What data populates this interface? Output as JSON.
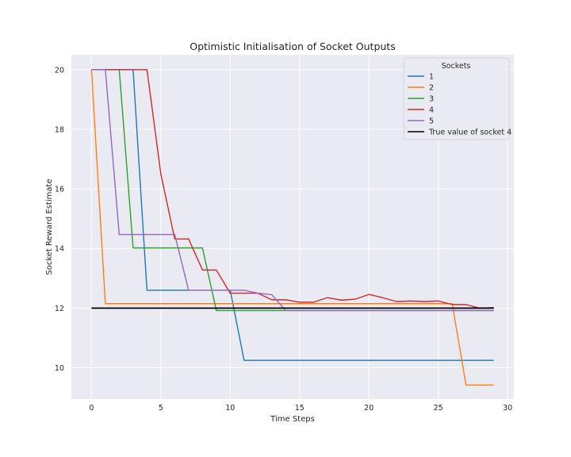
{
  "chart_data": {
    "type": "line",
    "title": "Optimistic Initialisation of Socket Outputs",
    "xlabel": "Time Steps",
    "ylabel": "Socket Reward Estimate",
    "xlim": [
      -1.45,
      30.45
    ],
    "ylim": [
      8.95,
      20.5
    ],
    "xticks": [
      0,
      5,
      10,
      15,
      20,
      25,
      30
    ],
    "yticks": [
      10,
      12,
      14,
      16,
      18,
      20
    ],
    "grid": true,
    "legend_title": "Sockets",
    "legend_position": "top-right",
    "x": [
      0,
      1,
      2,
      3,
      4,
      5,
      6,
      7,
      8,
      9,
      10,
      11,
      12,
      13,
      14,
      15,
      16,
      17,
      18,
      19,
      20,
      21,
      22,
      23,
      24,
      25,
      26,
      27,
      28,
      29
    ],
    "series": [
      {
        "name": "1",
        "color": "#1f77b4",
        "values": [
          20,
          20,
          20,
          20,
          12.6,
          12.6,
          12.6,
          12.6,
          12.6,
          12.6,
          12.6,
          10.25,
          10.25,
          10.25,
          10.25,
          10.25,
          10.25,
          10.25,
          10.25,
          10.25,
          10.25,
          10.25,
          10.25,
          10.25,
          10.25,
          10.25,
          10.25,
          10.25,
          10.25,
          10.25
        ]
      },
      {
        "name": "2",
        "color": "#ff7f0e",
        "values": [
          20,
          12.15,
          12.15,
          12.15,
          12.15,
          12.15,
          12.15,
          12.15,
          12.15,
          12.15,
          12.15,
          12.15,
          12.15,
          12.15,
          12.15,
          12.15,
          12.15,
          12.15,
          12.15,
          12.15,
          12.15,
          12.15,
          12.15,
          12.15,
          12.15,
          12.15,
          12.15,
          9.42,
          9.42,
          9.42
        ]
      },
      {
        "name": "3",
        "color": "#2ca02c",
        "values": [
          20,
          20,
          20,
          14.02,
          14.02,
          14.02,
          14.02,
          14.02,
          14.02,
          11.92,
          11.92,
          11.92,
          11.92,
          11.92,
          11.92,
          11.92,
          11.92,
          11.92,
          11.92,
          11.92,
          11.92,
          11.92,
          11.92,
          11.92,
          11.92,
          11.92,
          11.92,
          11.92,
          11.92,
          11.92
        ]
      },
      {
        "name": "4",
        "color": "#d62728",
        "values": [
          20,
          20,
          20,
          20,
          20,
          16.5,
          14.32,
          14.32,
          13.28,
          13.28,
          12.5,
          12.5,
          12.5,
          12.28,
          12.28,
          12.2,
          12.2,
          12.35,
          12.27,
          12.3,
          12.46,
          12.35,
          12.22,
          12.24,
          12.22,
          12.24,
          12.12,
          12.12,
          12.0,
          12.02
        ]
      },
      {
        "name": "5",
        "color": "#9467bd",
        "values": [
          20,
          20,
          14.47,
          14.47,
          14.47,
          14.47,
          14.47,
          12.6,
          12.6,
          12.6,
          12.6,
          12.6,
          12.5,
          12.45,
          11.92,
          11.92,
          11.92,
          11.92,
          11.92,
          11.92,
          11.92,
          11.92,
          11.92,
          11.92,
          11.92,
          11.92,
          11.92,
          11.92,
          11.92,
          11.92
        ]
      },
      {
        "name": "True value of socket 4",
        "color": "#000000",
        "x": [
          0,
          29
        ],
        "values": [
          12.0,
          12.0
        ]
      }
    ]
  }
}
